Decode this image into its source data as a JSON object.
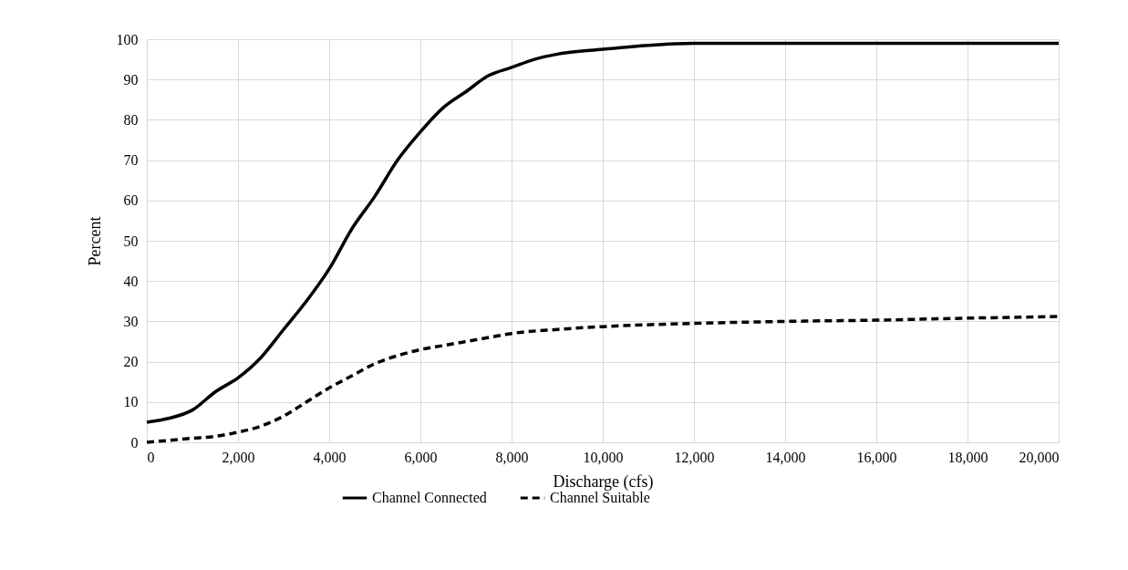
{
  "chart_data": {
    "type": "line",
    "xlabel": "Discharge (cfs)",
    "ylabel": "Percent",
    "xlim": [
      0,
      20000
    ],
    "xticks": [
      {
        "value": 0,
        "label": "0"
      },
      {
        "value": 2000,
        "label": "2,000"
      },
      {
        "value": 4000,
        "label": "4,000"
      },
      {
        "value": 6000,
        "label": "6,000"
      },
      {
        "value": 8000,
        "label": "8,000"
      },
      {
        "value": 10000,
        "label": "10,000"
      },
      {
        "value": 12000,
        "label": "12,000"
      },
      {
        "value": 14000,
        "label": "14,000"
      },
      {
        "value": 16000,
        "label": "16,000"
      },
      {
        "value": 18000,
        "label": "18,000"
      },
      {
        "value": 20000,
        "label": "20,000"
      }
    ],
    "ylim": [
      0,
      100
    ],
    "yticks": [
      0,
      10,
      20,
      30,
      40,
      50,
      60,
      70,
      80,
      90,
      100
    ],
    "grid": true,
    "legend": "bottom",
    "marker": "none",
    "series": [
      {
        "name": "Channel Connected",
        "color": "#000000",
        "line_style": "solid",
        "x": [
          0,
          500,
          1000,
          1500,
          2000,
          2500,
          3000,
          3500,
          4000,
          4500,
          5000,
          5500,
          6000,
          6500,
          7000,
          7500,
          8000,
          8500,
          9000,
          10000,
          11000,
          12000,
          14000,
          16000,
          18000,
          20000
        ],
        "values": [
          5,
          6,
          8,
          12.5,
          16,
          21,
          28,
          35,
          43,
          53,
          61,
          70,
          77,
          83,
          87,
          91,
          93,
          95,
          96.3,
          97.5,
          98.5,
          99,
          99,
          99,
          99,
          99
        ]
      },
      {
        "name": "Channel Suitable",
        "color": "#000000",
        "line_style": "dashed",
        "x": [
          0,
          500,
          1000,
          1500,
          2000,
          2500,
          3000,
          3500,
          4000,
          4500,
          5000,
          5500,
          6000,
          6500,
          7000,
          7500,
          8000,
          9000,
          10000,
          12000,
          14000,
          16000,
          18000,
          20000
        ],
        "values": [
          0,
          0.5,
          1,
          1.5,
          2.5,
          4,
          6.5,
          10,
          13.5,
          16.5,
          19.5,
          21.5,
          23,
          24,
          25,
          26,
          27,
          28,
          28.7,
          29.5,
          30,
          30.3,
          30.8,
          31.2
        ]
      }
    ]
  }
}
